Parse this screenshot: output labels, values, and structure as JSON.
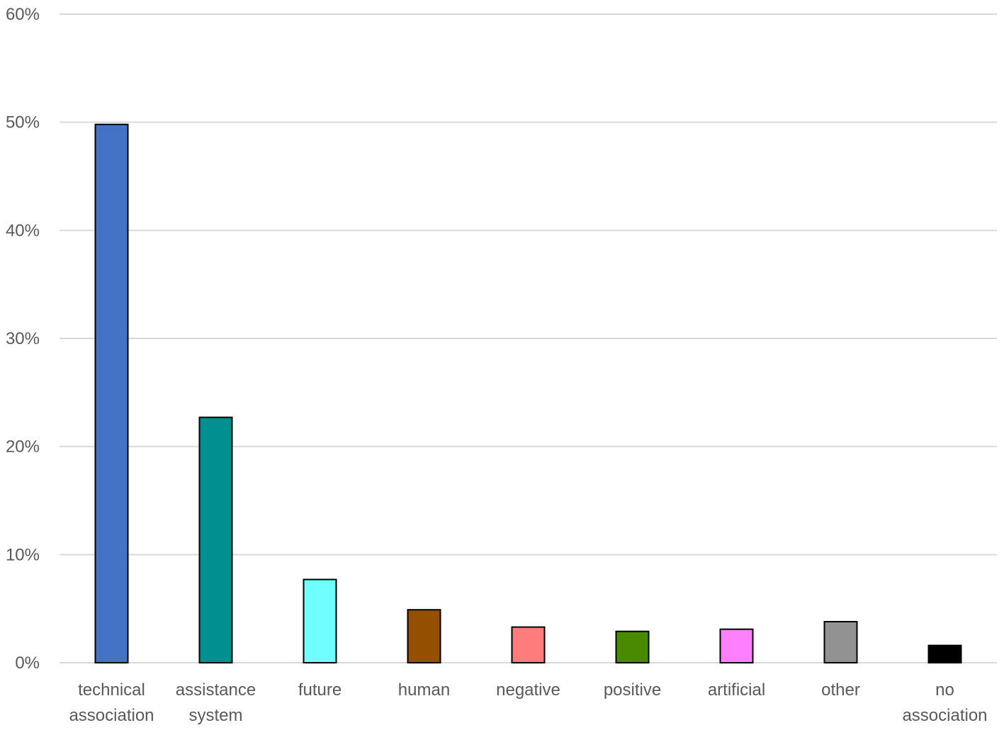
{
  "chart_data": {
    "type": "bar",
    "categories": [
      [
        "technical",
        "association"
      ],
      [
        "assistance",
        "system"
      ],
      [
        "future"
      ],
      [
        "human"
      ],
      [
        "negative"
      ],
      [
        "positive"
      ],
      [
        "artificial"
      ],
      [
        "other"
      ],
      [
        "no",
        "association"
      ]
    ],
    "values": [
      49.8,
      22.7,
      7.7,
      4.9,
      3.3,
      2.9,
      3.1,
      3.8,
      1.6
    ],
    "colors": [
      "#4472C4",
      "#009090",
      "#70FFFF",
      "#954F00",
      "#FF7C7C",
      "#4A8A00",
      "#FF80FF",
      "#929292",
      "#000000"
    ],
    "y_ticks": [
      "0%",
      "10%",
      "20%",
      "30%",
      "40%",
      "50%",
      "60%"
    ],
    "ylim": [
      0,
      60
    ],
    "title": "",
    "xlabel": "",
    "ylabel": "",
    "grid": true,
    "legend": "none"
  }
}
